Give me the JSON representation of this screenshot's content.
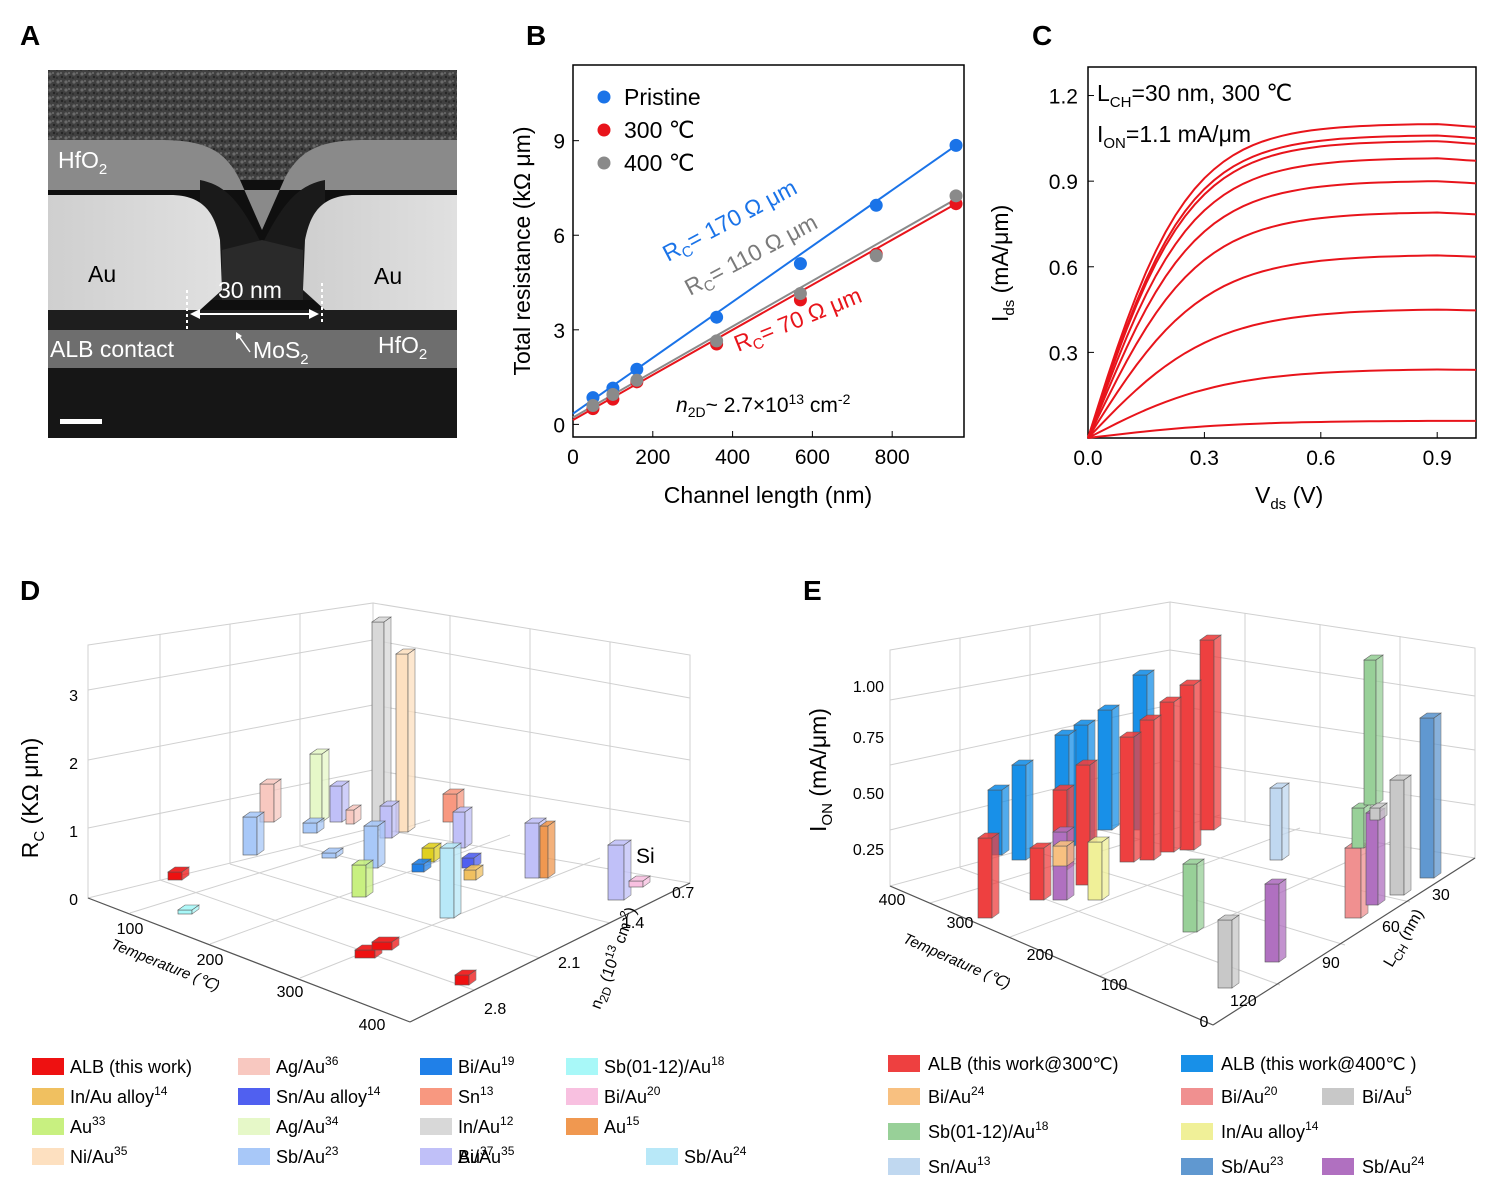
{
  "panels": {
    "A": {
      "label": "A",
      "texts": {
        "hfo2_top": "HfO",
        "au_left": "Au",
        "au_right": "Au",
        "gap": "30 nm",
        "alb": "ALB contact",
        "mos2": "MoS",
        "hfo2_right": "HfO",
        "sub2": "2"
      }
    },
    "B": {
      "label": "B"
    },
    "C": {
      "label": "C"
    },
    "D": {
      "label": "D"
    },
    "E": {
      "label": "E"
    }
  },
  "chart_data": [
    {
      "id": "B",
      "type": "scatter",
      "xlabel": "Channel length (nm)",
      "ylabel": "Total resistance (kΩ μm)",
      "xlim": [
        0,
        980
      ],
      "ylim": [
        -0.4,
        11.4
      ],
      "xticks": [
        0,
        200,
        400,
        600,
        800
      ],
      "yticks": [
        0,
        3,
        6,
        9
      ],
      "legend_position": "top-left",
      "series": [
        {
          "name": "Pristine",
          "color": "#1a73e8",
          "x": [
            50,
            100,
            160,
            360,
            570,
            760,
            960
          ],
          "y": [
            0.85,
            1.15,
            1.75,
            3.4,
            5.1,
            6.95,
            8.85
          ],
          "fit": [
            [
              0,
              0.34
            ],
            [
              960,
              8.85
            ]
          ]
        },
        {
          "name": "300 ℃",
          "color": "#e8141b",
          "x": [
            50,
            100,
            160,
            360,
            570,
            760,
            960
          ],
          "y": [
            0.5,
            0.8,
            1.35,
            2.55,
            3.95,
            5.4,
            7.0
          ],
          "fit": [
            [
              0,
              0.14
            ],
            [
              960,
              7.0
            ]
          ]
        },
        {
          "name": "400 ℃",
          "color": "#8a8a8a",
          "x": [
            50,
            100,
            160,
            360,
            570,
            760,
            960
          ],
          "y": [
            0.6,
            0.95,
            1.4,
            2.65,
            4.15,
            5.35,
            7.25
          ],
          "fit": [
            [
              0,
              0.22
            ],
            [
              960,
              7.15
            ]
          ]
        }
      ],
      "annotations": {
        "rc_pristine_main": "R",
        "rc_pristine_rest": "= 170 Ω μm",
        "rc_400_main": "R",
        "rc_400_rest": "= 110 Ω μm",
        "rc_300_main": "R",
        "rc_300_rest": "= 70 Ω μm",
        "sub_c": "C",
        "density_n": "n",
        "density_sub": "2D",
        "density_rest": "~ 2.7×10",
        "density_exp": "13",
        "density_unit": " cm",
        "density_unit_exp": "-2"
      }
    },
    {
      "id": "C",
      "type": "line",
      "xlabel_main": "V",
      "xlabel_sub": "ds",
      "xlabel_rest": " (V)",
      "ylabel_main": "I",
      "ylabel_sub": "ds",
      "ylabel_rest": " (mA/μm)",
      "xlim": [
        0,
        1.0
      ],
      "ylim": [
        0,
        1.3
      ],
      "xticks": [
        0.0,
        0.3,
        0.6,
        0.9
      ],
      "yticks": [
        0.3,
        0.6,
        0.9,
        1.2
      ],
      "xticklabels": [
        "0.0",
        "0.3",
        "0.6",
        "0.9"
      ],
      "yticklabels": [
        "0.3",
        "0.6",
        "0.9",
        "1.2"
      ],
      "color": "#e8141b",
      "curve_saturation": [
        0.06,
        0.24,
        0.45,
        0.64,
        0.79,
        0.9,
        0.98,
        1.04,
        1.06,
        1.1
      ],
      "annotations": {
        "l1_main": "L",
        "l1_sub": "CH",
        "l1_rest": "=30 nm, 300 ℃",
        "l2_main": "I",
        "l2_sub": "ON",
        "l2_rest": "=1.1 mA/μm"
      }
    },
    {
      "id": "D",
      "type": "bar",
      "view": "3d",
      "ylabel_main": "R",
      "ylabel_sub": "C",
      "ylabel_rest": " (KΩ μm)",
      "xlabel": "Temperature (℃)",
      "zlabel_main": "n",
      "zlabel_sub": "2D",
      "zlabel_rest": " (10",
      "zlabel_exp": "13",
      "zlabel_end": " cm",
      "zlabel_end_exp": "-2",
      "zlabel_close": ")",
      "rc_ticks": [
        0,
        1,
        2,
        3
      ],
      "temp_ticks": [
        100,
        200,
        300,
        400
      ],
      "n_ticks": [
        "0.7",
        "1.4",
        "2.1",
        "2.8"
      ],
      "si_label": "Si",
      "legend": [
        {
          "main": "ALB (this work)",
          "sup": "",
          "color": "#ee1111"
        },
        {
          "main": "In/Au alloy",
          "sup": "14",
          "color": "#f0c060"
        },
        {
          "main": "Au",
          "sup": "33",
          "color": "#c8f080"
        },
        {
          "main": "Ni/Au",
          "sup": "35",
          "color": "#fde0c0"
        },
        {
          "main": "Ag/Au",
          "sup": "36",
          "color": "#f8c8c0"
        },
        {
          "main": "Sn/Au alloy",
          "sup": "14",
          "color": "#5060f0"
        },
        {
          "main": "Ag/Au",
          "sup": "34",
          "color": "#e6f8c8"
        },
        {
          "main": "Sb/Au",
          "sup": "23",
          "color": "#a8c8f8"
        },
        {
          "main": "Bi/Au",
          "sup": "19",
          "color": "#2080e8"
        },
        {
          "main": "Sn",
          "sup": "13",
          "color": "#f89880"
        },
        {
          "main": "In/Au",
          "sup": "12",
          "color": "#d8d8d8"
        },
        {
          "main": "Au",
          "sup": "37",
          "color": "#e0d020"
        },
        {
          "main": "Sb(01-12)/Au",
          "sup": "18",
          "color": "#a8f8f8"
        },
        {
          "main": "Bi/Au",
          "sup": "20",
          "color": "#f8c0e0"
        },
        {
          "main": "Au",
          "sup": "15",
          "color": "#f09850"
        },
        {
          "main": "Bi/Au",
          "sup": "35",
          "color": "#c0c0f8"
        },
        {
          "main": "Sb/Au",
          "sup": "24",
          "color": "#b8e8f8"
        }
      ]
    },
    {
      "id": "E",
      "type": "bar",
      "view": "3d",
      "ylabel_main": "I",
      "ylabel_sub": "ON",
      "ylabel_rest": " (mA/μm)",
      "xlabel": "Temperature (℃)",
      "zlabel_main": "L",
      "zlabel_sub": "CH",
      "zlabel_rest": " (nm)",
      "ion_ticks": [
        "0.25",
        "0.50",
        "0.75",
        "1.00"
      ],
      "temp_ticks": [
        0,
        100,
        200,
        300,
        400
      ],
      "l_ticks": [
        30,
        60,
        90,
        120
      ],
      "legend": [
        {
          "main": "ALB (this work@300℃)",
          "sup": "",
          "color": "#ee4040"
        },
        {
          "main": "ALB (this work@400℃ )",
          "sup": "",
          "color": "#1890e8"
        },
        {
          "main": "Bi/Au",
          "sup": "24",
          "color": "#f8c080"
        },
        {
          "main": "Bi/Au",
          "sup": "20",
          "color": "#f09090"
        },
        {
          "main": "Bi/Au",
          "sup": "5",
          "color": "#c8c8c8"
        },
        {
          "main": "Sb(01-12)/Au",
          "sup": "18",
          "color": "#98d098"
        },
        {
          "main": "In/Au alloy",
          "sup": "14",
          "color": "#f0f098"
        },
        {
          "main": "Sn/Au",
          "sup": "13",
          "color": "#c0d8f0"
        },
        {
          "main": "Sb/Au",
          "sup": "23",
          "color": "#6098d0"
        },
        {
          "main": "Sb/Au",
          "sup": "24",
          "color": "#b070c0"
        }
      ]
    }
  ]
}
